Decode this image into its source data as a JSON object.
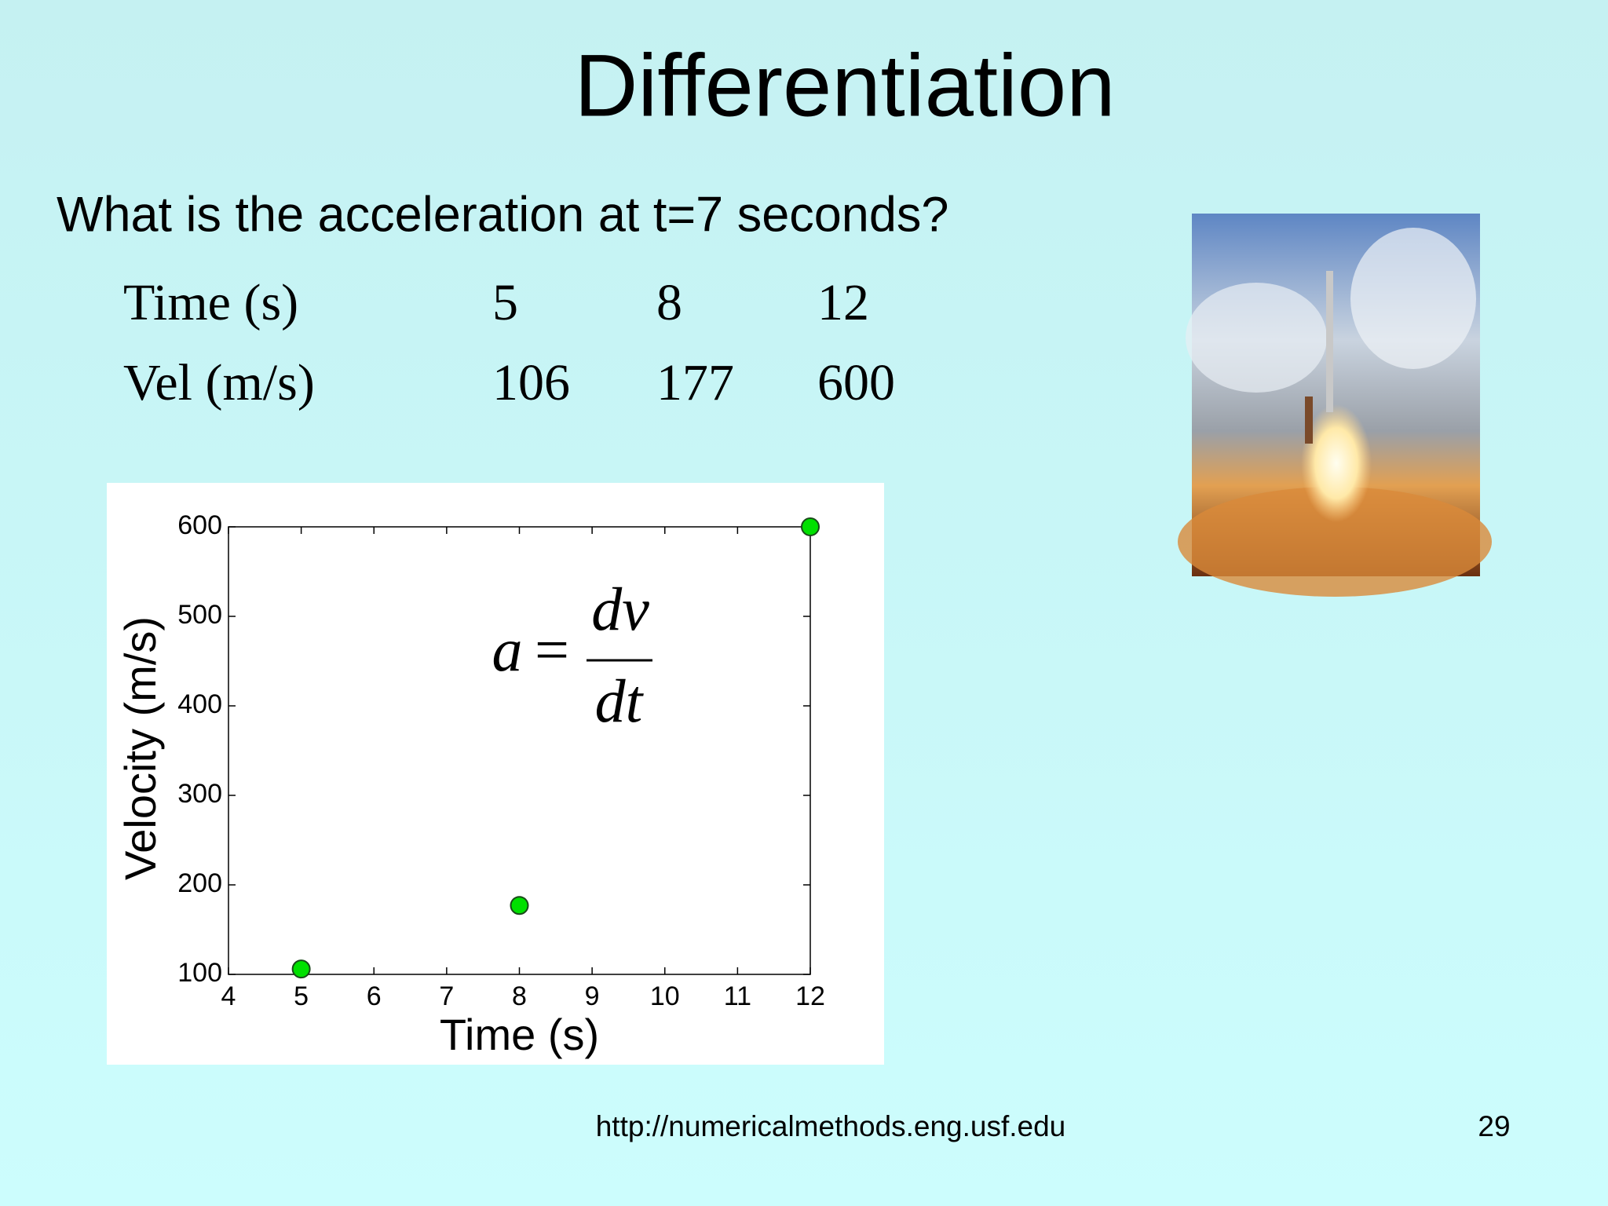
{
  "header": {
    "title": "Differentiation"
  },
  "question": "What is the acceleration at t=7 seconds?",
  "table": {
    "rows": [
      [
        "Time (s)",
        5,
        8,
        12
      ],
      [
        "Vel (m/s)",
        106,
        177,
        600
      ]
    ]
  },
  "chart_data": {
    "type": "scatter",
    "x_label": "Time (s)",
    "y_label": "Velocity (m/s)",
    "x": [
      5,
      8,
      12
    ],
    "values": [
      106,
      177,
      600
    ],
    "color": "#00e000",
    "xlim": [
      4,
      12
    ],
    "xticks": [
      4,
      5,
      6,
      7,
      8,
      9,
      10,
      11,
      12
    ],
    "ylim": [
      100,
      600
    ],
    "yticks": [
      100,
      200,
      300,
      400,
      500,
      600
    ],
    "formula": {
      "lhs": "a",
      "eq": "=",
      "numerator": "dv",
      "denominator": "dt"
    }
  },
  "footer": {
    "url": "http://numericalmethods.eng.usf.edu",
    "page": 29
  }
}
